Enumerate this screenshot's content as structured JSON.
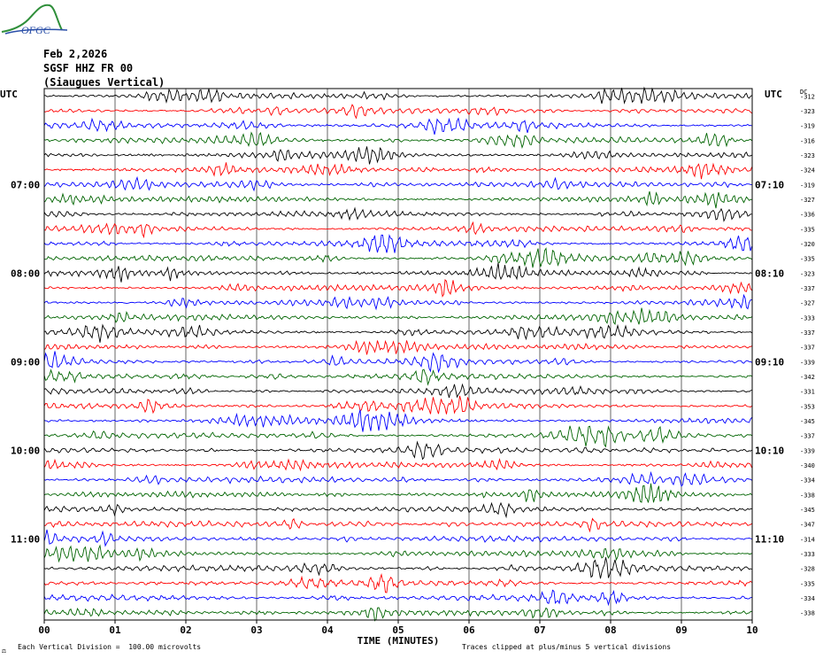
{
  "logo": {
    "text": "OFGC",
    "green": "#2f8f3a",
    "blue": "#2a4fa8"
  },
  "header": {
    "date": "Feb 2,2026",
    "station": "SGSF HHZ FR 00",
    "site": "(Siaugues Vertical)"
  },
  "footer": {
    "scale_note": "Each Vertical Division =  100.00 microvolts",
    "clip_note": "Traces clipped at plus/minus 5 vertical divisions",
    "corner_mark": "⚖"
  },
  "chart_data": {
    "type": "line",
    "title": "",
    "xlabel": "TIME (MINUTES)",
    "ylabel": "",
    "xlim": [
      0,
      10
    ],
    "x_ticks": [
      "00",
      "01",
      "02",
      "03",
      "04",
      "05",
      "06",
      "07",
      "08",
      "09",
      "10"
    ],
    "left_axis_title": "UTC",
    "right_axis_title": "UTC",
    "dc_axis_title": "DC",
    "left_time_labels": [
      {
        "row": 6,
        "label": "07:00"
      },
      {
        "row": 12,
        "label": "08:00"
      },
      {
        "row": 18,
        "label": "09:00"
      },
      {
        "row": 24,
        "label": "10:00"
      },
      {
        "row": 30,
        "label": "11:00"
      }
    ],
    "right_time_labels": [
      {
        "row": 6,
        "label": "07:10"
      },
      {
        "row": 12,
        "label": "08:10"
      },
      {
        "row": 18,
        "label": "09:10"
      },
      {
        "row": 24,
        "label": "10:10"
      },
      {
        "row": 30,
        "label": "11:10"
      }
    ],
    "trace_colors": [
      "#000000",
      "#ff0000",
      "#0000ff",
      "#006400"
    ],
    "dc_offsets": [
      -312,
      -323,
      -319,
      -316,
      -323,
      -324,
      -319,
      -327,
      -336,
      -335,
      -320,
      -335,
      -323,
      -337,
      -327,
      -333,
      -337,
      -337,
      -339,
      -342,
      -331,
      -353,
      -345,
      -337,
      -339,
      -340,
      -334,
      -338,
      -345,
      -347,
      -314,
      -333,
      -328,
      -335,
      -334,
      -338
    ],
    "trace_count": 36,
    "amplitude_per_division_microvolts": 100.0,
    "clip_divisions": 5
  }
}
